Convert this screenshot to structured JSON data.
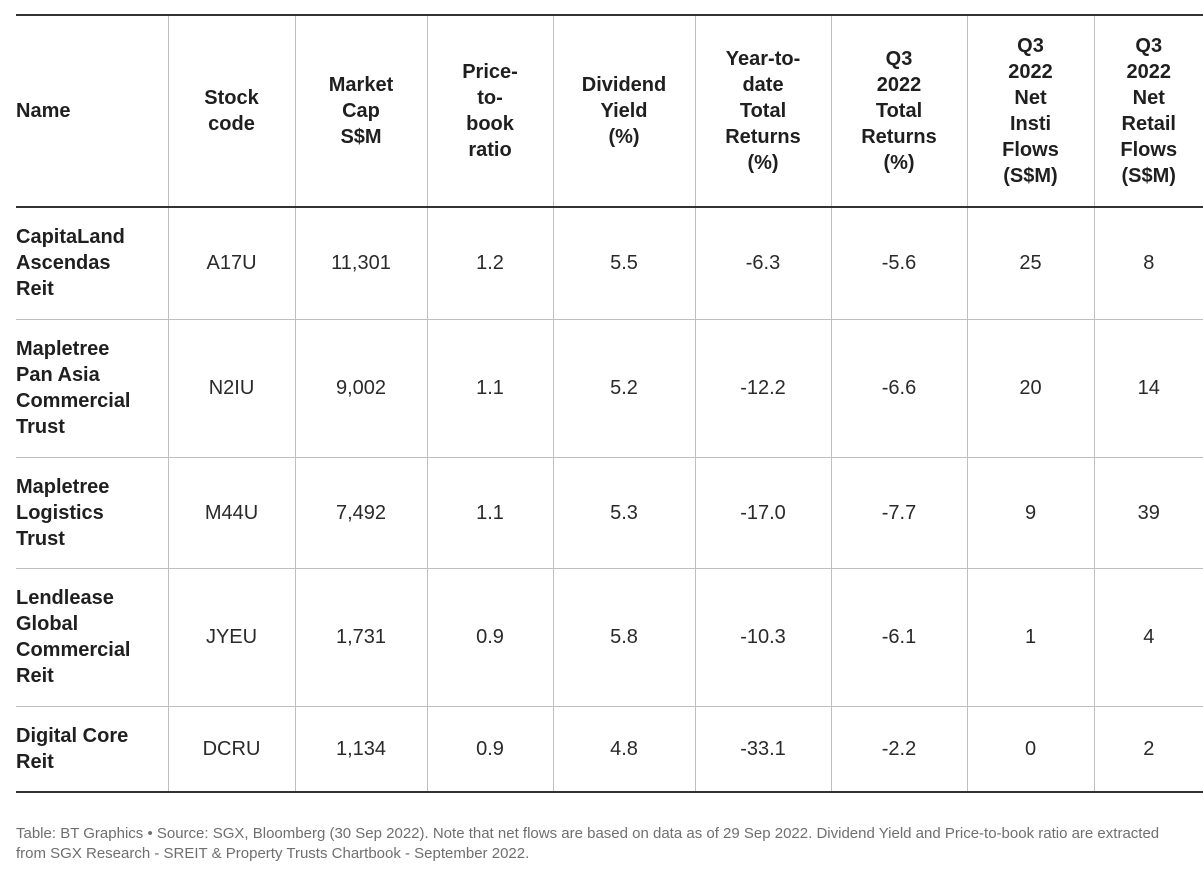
{
  "table": {
    "headers": [
      "Name",
      "Stock\ncode",
      "Market\nCap\nS$M",
      "Price-\nto-\nbook\nratio",
      "Dividend\nYield\n(%)",
      "Year-to-\ndate\nTotal\nReturns\n(%)",
      "Q3\n2022\nTotal\nReturns\n(%)",
      "Q3\n2022\nNet\nInsti\nFlows\n(S$M)",
      "Q3\n2022\nNet\nRetail\nFlows\n(S$M)"
    ],
    "rows": [
      {
        "name": "CapitaLand\nAscendas\nReit",
        "code": "A17U",
        "market_cap": "11,301",
        "pb": "1.2",
        "yield": "5.5",
        "ytd": "-6.3",
        "q3_return": "-5.6",
        "insti": "25",
        "retail": "8"
      },
      {
        "name": "Mapletree\nPan Asia\nCommercial\nTrust",
        "code": "N2IU",
        "market_cap": "9,002",
        "pb": "1.1",
        "yield": "5.2",
        "ytd": "-12.2",
        "q3_return": "-6.6",
        "insti": "20",
        "retail": "14"
      },
      {
        "name": "Mapletree\nLogistics\nTrust",
        "code": "M44U",
        "market_cap": "7,492",
        "pb": "1.1",
        "yield": "5.3",
        "ytd": "-17.0",
        "q3_return": "-7.7",
        "insti": "9",
        "retail": "39"
      },
      {
        "name": "Lendlease\nGlobal\nCommercial\nReit",
        "code": "JYEU",
        "market_cap": "1,731",
        "pb": "0.9",
        "yield": "5.8",
        "ytd": "-10.3",
        "q3_return": "-6.1",
        "insti": "1",
        "retail": "4"
      },
      {
        "name": "Digital Core\nReit",
        "code": "DCRU",
        "market_cap": "1,134",
        "pb": "0.9",
        "yield": "4.8",
        "ytd": "-33.1",
        "q3_return": "-2.2",
        "insti": "0",
        "retail": "2"
      }
    ]
  },
  "footer": {
    "note": "Table: BT Graphics • Source: SGX, Bloomberg (30 Sep 2022). Note that net flows are based on data as of 29 Sep 2022. Dividend Yield and Price-to-book ratio are extracted from SGX Research - SREIT & Property Trusts Chartbook - September 2022."
  },
  "colors": {
    "text": "#222222",
    "rule_strong": "#333333",
    "rule_light": "#bfbfbf",
    "footer_text": "#6f6f6f"
  }
}
